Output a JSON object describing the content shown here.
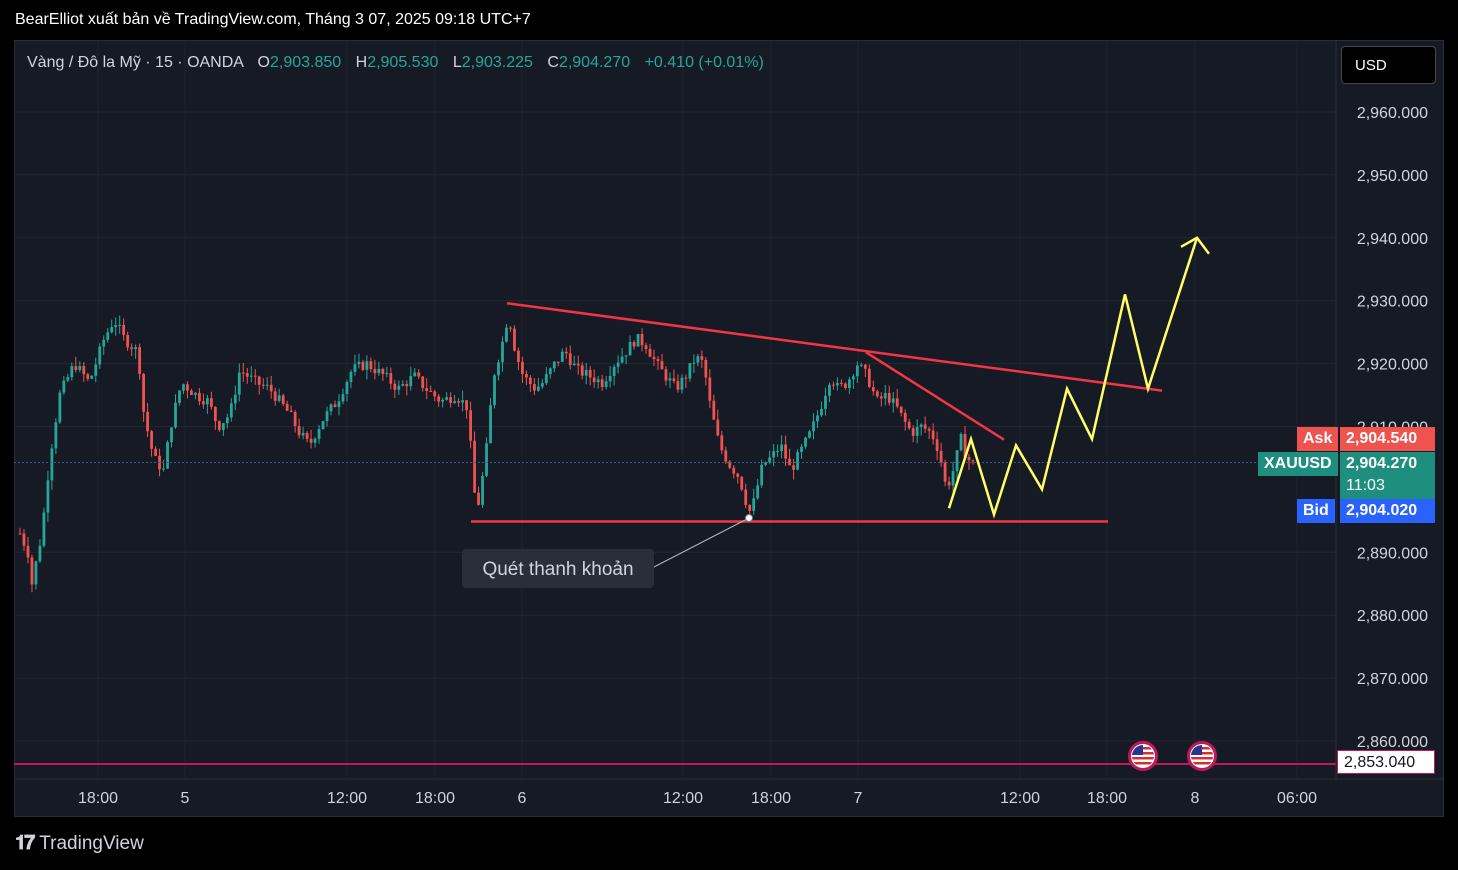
{
  "header": {
    "title": "BearElliot xuất bản về TradingView.com, Tháng 3 07, 2025 09:18 UTC+7"
  },
  "info": {
    "symbol": "Vàng / Đô la Mỹ · 15 · OANDA",
    "o_label": "O",
    "o": "2,903.850",
    "h_label": "H",
    "h": "2,905.530",
    "l_label": "L",
    "l": "2,903.225",
    "c_label": "C",
    "c": "2,904.270",
    "change": "+0.410 (+0.01%)"
  },
  "currency": "USD",
  "colors": {
    "up": "#26a69a",
    "down": "#ef5350",
    "trend": "#f23645",
    "projection": "#ffff66",
    "ask": "#ef5350",
    "bid": "#2962ff",
    "last": "#1e8f7e"
  },
  "price_scale": [
    "2,960.000",
    "2,950.000",
    "2,940.000",
    "2,930.000",
    "2,920.000",
    "2,910.000",
    "2,890.000",
    "2,880.000",
    "2,870.000",
    "2,860.000"
  ],
  "tags": {
    "ask_label": "Ask",
    "ask": "2,904.540",
    "symbol_label": "XAUUSD",
    "last": "2,904.270",
    "countdown": "11:03",
    "bid_label": "Bid",
    "bid": "2,904.020",
    "low_line": "2,853.040"
  },
  "time_axis": [
    "18:00",
    "5",
    "12:00",
    "18:00",
    "6",
    "12:00",
    "18:00",
    "7",
    "12:00",
    "18:00",
    "8",
    "06:00"
  ],
  "annotation": "Quét thanh khoản",
  "footer": {
    "brand": "TradingView"
  },
  "chart_data": {
    "type": "candlestick",
    "symbol": "XAUUSD",
    "timeframe": "15",
    "ylim": [
      2849,
      2966
    ],
    "price_path": [
      [
        0,
        2893
      ],
      [
        8,
        2890
      ],
      [
        12,
        2885
      ],
      [
        22,
        2893
      ],
      [
        30,
        2905
      ],
      [
        40,
        2915
      ],
      [
        55,
        2920
      ],
      [
        70,
        2917
      ],
      [
        85,
        2924
      ],
      [
        95,
        2927
      ],
      [
        105,
        2924
      ],
      [
        118,
        2922
      ],
      [
        122,
        2918
      ],
      [
        125,
        2912
      ],
      [
        135,
        2905
      ],
      [
        145,
        2903
      ],
      [
        152,
        2910
      ],
      [
        163,
        2917
      ],
      [
        178,
        2915
      ],
      [
        190,
        2914
      ],
      [
        200,
        2910
      ],
      [
        212,
        2912
      ],
      [
        222,
        2919
      ],
      [
        238,
        2917
      ],
      [
        252,
        2916
      ],
      [
        262,
        2914
      ],
      [
        272,
        2912
      ],
      [
        282,
        2909
      ],
      [
        292,
        2907
      ],
      [
        305,
        2911
      ],
      [
        320,
        2914
      ],
      [
        335,
        2919
      ],
      [
        350,
        2920
      ],
      [
        368,
        2918
      ],
      [
        382,
        2916
      ],
      [
        398,
        2918
      ],
      [
        410,
        2916
      ],
      [
        425,
        2914
      ],
      [
        440,
        2915
      ],
      [
        452,
        2913
      ],
      [
        458,
        2900
      ],
      [
        462,
        2897
      ],
      [
        470,
        2905
      ],
      [
        478,
        2918
      ],
      [
        488,
        2924
      ],
      [
        493,
        2928
      ],
      [
        500,
        2922
      ],
      [
        508,
        2918
      ],
      [
        520,
        2916
      ],
      [
        528,
        2917
      ],
      [
        540,
        2920
      ],
      [
        550,
        2922
      ],
      [
        562,
        2919
      ],
      [
        575,
        2918
      ],
      [
        588,
        2917
      ],
      [
        600,
        2920
      ],
      [
        612,
        2922
      ],
      [
        622,
        2924
      ],
      [
        632,
        2923
      ],
      [
        642,
        2920
      ],
      [
        652,
        2918
      ],
      [
        662,
        2916
      ],
      [
        672,
        2918
      ],
      [
        682,
        2921
      ],
      [
        690,
        2920
      ],
      [
        697,
        2913
      ],
      [
        706,
        2907
      ],
      [
        716,
        2904
      ],
      [
        726,
        2902
      ],
      [
        733,
        2898
      ],
      [
        738,
        2896
      ],
      [
        742,
        2899
      ],
      [
        750,
        2904
      ],
      [
        758,
        2905
      ],
      [
        768,
        2907
      ],
      [
        778,
        2903
      ],
      [
        788,
        2906
      ],
      [
        798,
        2909
      ],
      [
        808,
        2913
      ],
      [
        818,
        2918
      ],
      [
        826,
        2916
      ],
      [
        835,
        2917
      ],
      [
        845,
        2920
      ],
      [
        855,
        2918
      ],
      [
        865,
        2914
      ],
      [
        875,
        2915
      ],
      [
        885,
        2913
      ],
      [
        892,
        2911
      ],
      [
        900,
        2909
      ],
      [
        910,
        2910
      ],
      [
        920,
        2909
      ],
      [
        928,
        2906
      ],
      [
        935,
        2900
      ],
      [
        942,
        2903
      ],
      [
        950,
        2908
      ],
      [
        956,
        2905
      ],
      [
        962,
        2904
      ]
    ],
    "trendlines": [
      {
        "from": [
          0.4934,
          2929.6
        ],
        "to": [
          1.0,
          2915.7
        ],
        "label": "descending resistance"
      },
      {
        "from": [
          0.8525,
          2921.8
        ],
        "to": [
          0.9715,
          2907.9
        ],
        "label": "inner resistance"
      },
      {
        "from": [
          0.457,
          2894.9
        ],
        "to": [
          1.0,
          2894.9
        ],
        "label": "support"
      }
    ],
    "projection": [
      [
        2898,
        2897
      ],
      [
        2908
      ],
      [
        2896
      ],
      [
        2907
      ],
      [
        2900
      ],
      [
        2916
      ],
      [
        2908
      ],
      [
        2931
      ],
      [
        2916
      ],
      [
        2940
      ]
    ]
  }
}
